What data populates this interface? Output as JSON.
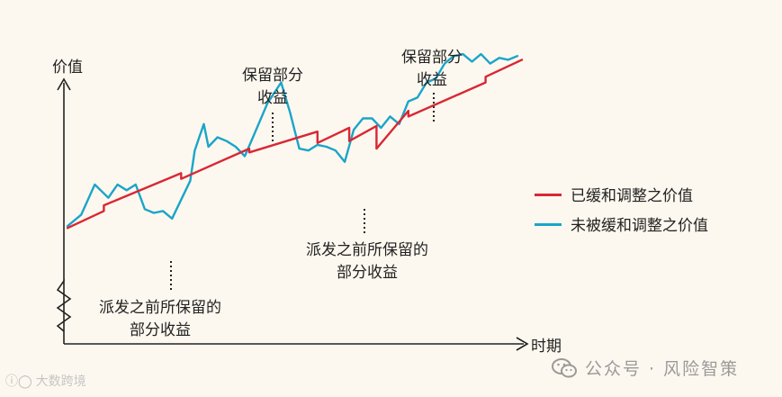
{
  "chart_data": {
    "type": "line",
    "ylabel": "价值",
    "xlabel": "时期",
    "x_range": [
      0,
      100
    ],
    "y_range": [
      0,
      100
    ],
    "y_axis_broken": true,
    "series": [
      {
        "name": "已缓和调整之价值",
        "color": "#d92734",
        "x": [
          0,
          8,
          8,
          25,
          25,
          40,
          40,
          55,
          55,
          62,
          62,
          68,
          68,
          75,
          75,
          92,
          92,
          100
        ],
        "y": [
          27,
          36,
          39,
          56,
          53,
          69,
          67,
          78,
          72,
          80,
          73,
          81,
          69,
          89,
          86,
          104,
          107,
          116
        ]
      },
      {
        "name": "未被缓和调整之价值",
        "color": "#1aa5c9",
        "x": [
          0,
          3,
          6,
          9,
          11,
          13,
          15,
          17,
          19,
          21,
          23,
          25,
          27,
          28,
          29,
          30,
          31,
          33,
          35,
          37,
          39,
          41,
          44,
          47,
          49,
          51,
          53,
          55,
          57,
          59,
          61,
          63,
          65,
          67,
          69,
          71,
          73,
          75,
          77,
          79,
          81,
          83,
          85,
          87,
          89,
          91,
          93,
          95,
          97,
          99
        ],
        "y": [
          28,
          34,
          50,
          43,
          50,
          47,
          50,
          37,
          35,
          36,
          32,
          42,
          52,
          68,
          75,
          82,
          70,
          75,
          73,
          70,
          65,
          76,
          93,
          104,
          88,
          69,
          68,
          71,
          70,
          68,
          62,
          79,
          85,
          85,
          80,
          86,
          82,
          94,
          96,
          104,
          106,
          114,
          118,
          119,
          115,
          119,
          114,
          117,
          116,
          118
        ]
      }
    ],
    "annotations": [
      {
        "text": [
          "保留部分",
          "收益"
        ],
        "at_x": 37
      },
      {
        "text": [
          "保留部分",
          "收益"
        ],
        "at_x": 71
      },
      {
        "text": [
          "派发之前所保留的",
          "部分收益"
        ],
        "at_x": 19
      },
      {
        "text": [
          "派发之前所保留的",
          "部分收益"
        ],
        "at_x": 57
      }
    ],
    "legend_position": "right"
  },
  "watermarks": {
    "left_text": "大数跨境",
    "right_text": "公众号 · 风险智策"
  }
}
